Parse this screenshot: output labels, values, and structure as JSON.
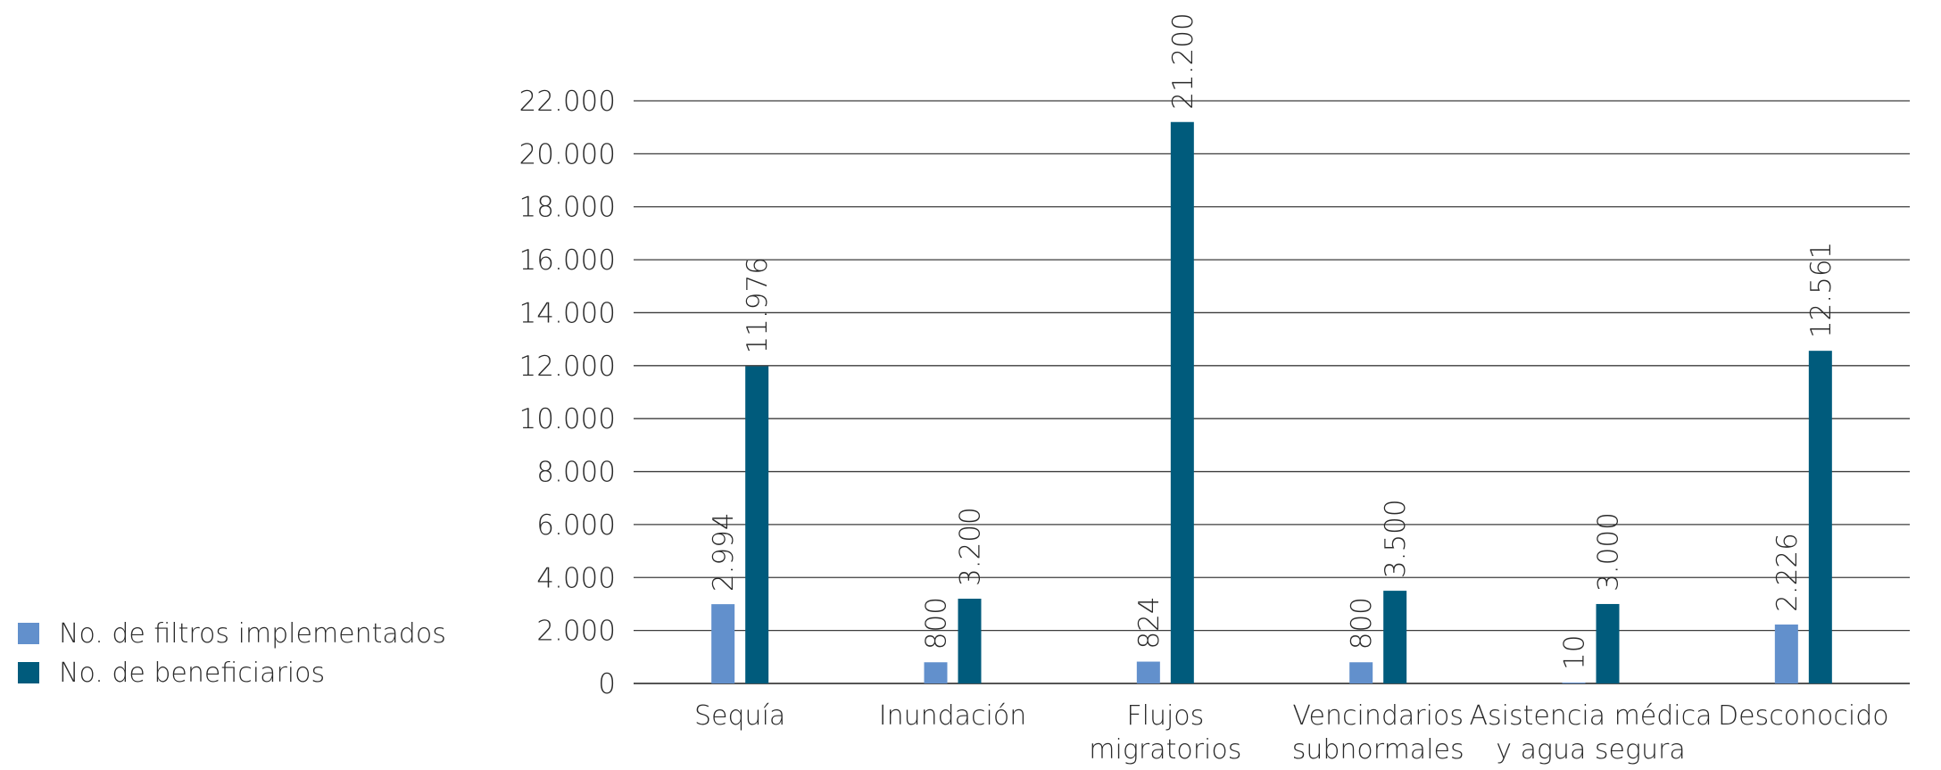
{
  "chart_data": {
    "type": "bar",
    "categories": [
      [
        "Sequía"
      ],
      [
        "Inundación"
      ],
      [
        "Flujos",
        "migratorios"
      ],
      [
        "Vencindarios",
        "subnormales"
      ],
      [
        "Asistencia médica",
        "y agua segura"
      ],
      [
        "Desconocido"
      ]
    ],
    "series": [
      {
        "name": "No. de filtros implementados",
        "color": "#6290cc",
        "values": [
          2994,
          800,
          824,
          800,
          10,
          2226
        ],
        "labels": [
          "2.994",
          "800",
          "824",
          "800",
          "10",
          "2.226"
        ]
      },
      {
        "name": "No. de beneficiarios",
        "color": "#005b7c",
        "values": [
          11976,
          3200,
          21200,
          3500,
          3000,
          12561
        ],
        "labels": [
          "11.976",
          "3.200",
          "21.200",
          "3.500",
          "3.000",
          "12.561"
        ]
      }
    ],
    "yticks": [
      "0",
      "2.000",
      "4.000",
      "6.000",
      "8.000",
      "10.000",
      "12.000",
      "14.000",
      "16.000",
      "18.000",
      "20.000",
      "22.000"
    ],
    "ylim": [
      0,
      22000
    ],
    "grid": true,
    "legend_position": "left"
  }
}
